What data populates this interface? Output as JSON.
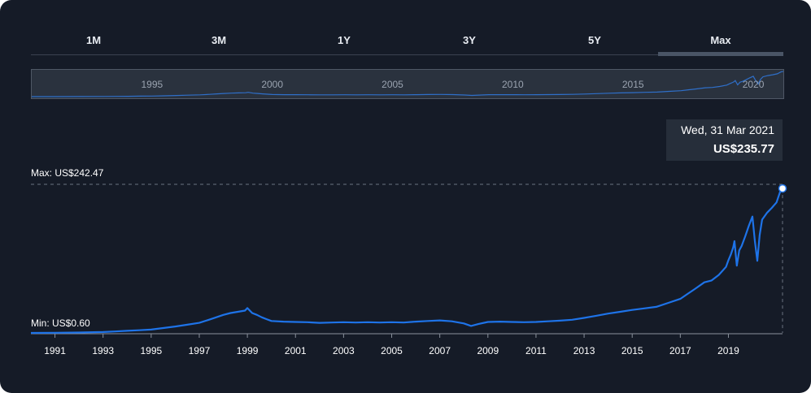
{
  "range_tabs": [
    {
      "label": "1M",
      "active": false
    },
    {
      "label": "3M",
      "active": false
    },
    {
      "label": "1Y",
      "active": false
    },
    {
      "label": "3Y",
      "active": false
    },
    {
      "label": "5Y",
      "active": false
    },
    {
      "label": "Max",
      "active": true
    }
  ],
  "navigator": {
    "year_labels": [
      "1995",
      "2000",
      "2005",
      "2010",
      "2015",
      "2020"
    ]
  },
  "tooltip": {
    "date": "Wed, 31 Mar 2021",
    "value": "US$235.77"
  },
  "max_label": "Max: US$242.47",
  "min_label": "Min: US$0.60",
  "colors": {
    "background": "#151b27",
    "line": "#1e73e8",
    "navigator_line": "#2f6fc9",
    "grid_dashed": "#6b7380"
  },
  "chart_data": {
    "type": "line",
    "title": "",
    "xlabel": "",
    "ylabel": "",
    "x_tick_labels": [
      "1991",
      "1993",
      "1995",
      "1997",
      "1999",
      "2001",
      "2003",
      "2005",
      "2007",
      "2009",
      "2011",
      "2013",
      "2015",
      "2017",
      "2019"
    ],
    "xlim": [
      1990.0,
      2021.25
    ],
    "ylim": [
      0.6,
      242.47
    ],
    "series": [
      {
        "x": [
          1990.0,
          1991.0,
          1992.0,
          1993.0,
          1993.5,
          1994.0,
          1994.5,
          1995.0,
          1995.5,
          1996.0,
          1996.5,
          1997.0,
          1997.4,
          1997.7,
          1998.0,
          1998.3,
          1998.6,
          1998.9,
          1999.0,
          1999.2,
          1999.4,
          1999.6,
          1999.8,
          2000.0,
          2000.5,
          2001.0,
          2001.5,
          2002.0,
          2002.5,
          2003.0,
          2003.5,
          2004.0,
          2004.5,
          2005.0,
          2005.5,
          2006.0,
          2006.5,
          2007.0,
          2007.5,
          2008.0,
          2008.3,
          2008.6,
          2009.0,
          2009.5,
          2010.0,
          2010.5,
          2011.0,
          2011.5,
          2012.0,
          2012.5,
          2013.0,
          2013.5,
          2014.0,
          2014.5,
          2015.0,
          2015.5,
          2016.0,
          2016.5,
          2017.0,
          2017.3,
          2017.6,
          2018.0,
          2018.3,
          2018.6,
          2018.9,
          2019.0,
          2019.1,
          2019.2,
          2019.25,
          2019.35,
          2019.45,
          2019.55,
          2019.7,
          2019.85,
          2020.0,
          2020.1,
          2020.2,
          2020.3,
          2020.4,
          2020.6,
          2020.8,
          2021.0,
          2021.15,
          2021.25
        ],
        "values": [
          0.6,
          0.8,
          1.2,
          2.0,
          3.0,
          4.0,
          5.0,
          6.0,
          8.5,
          11.0,
          14.0,
          17.0,
          22.0,
          26.0,
          30.0,
          33.0,
          35.0,
          37.0,
          41.0,
          33.0,
          30.0,
          26.0,
          23.0,
          20.0,
          19.0,
          18.5,
          18.0,
          17.0,
          17.5,
          18.0,
          17.5,
          18.0,
          17.5,
          18.0,
          17.5,
          19.0,
          20.0,
          21.0,
          19.5,
          16.0,
          12.0,
          15.0,
          18.5,
          19.0,
          18.5,
          18.0,
          18.5,
          19.5,
          20.5,
          22.0,
          25.0,
          28.5,
          32.0,
          35.0,
          38.0,
          40.5,
          43.0,
          49.5,
          56.0,
          64.0,
          72.0,
          83.0,
          86.0,
          95.0,
          108.0,
          119.0,
          128.0,
          140.0,
          150.0,
          110.0,
          135.0,
          142.0,
          158.0,
          175.0,
          190.0,
          150.0,
          118.0,
          160.0,
          185.0,
          196.0,
          204.0,
          213.0,
          230.0,
          235.77
        ]
      }
    ],
    "navigator_xlim": [
      1990.0,
      2021.25
    ],
    "navigator_x_labels": [
      1995,
      2000,
      2005,
      2010,
      2015,
      2020
    ],
    "max_value": 242.47,
    "min_value": 0.6,
    "highlight": {
      "x": 2021.25,
      "y": 235.77
    }
  }
}
